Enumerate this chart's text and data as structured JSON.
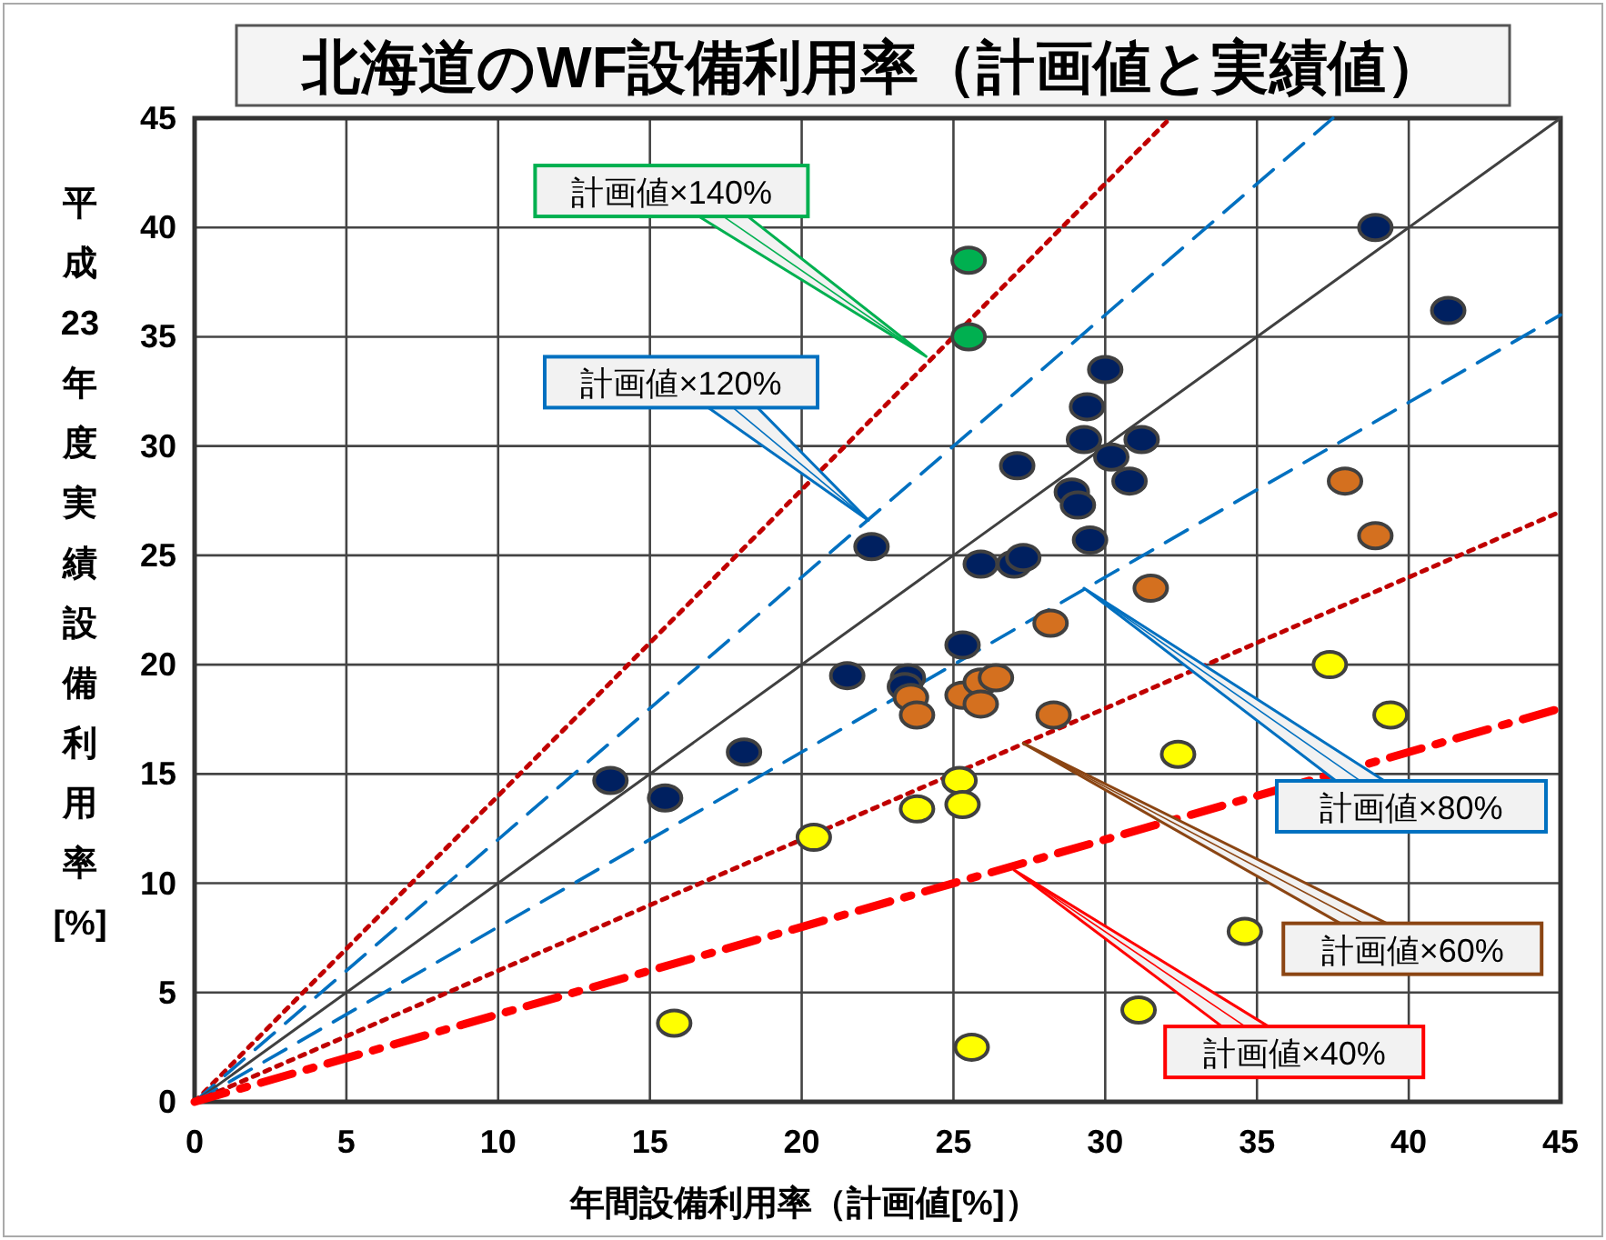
{
  "chart_data": {
    "type": "scatter",
    "title": "北海道のWF設備利用率（計画値と実績値）",
    "xlabel": "年間設備利用率（計画値[%]）",
    "ylabel": "平成23年度実績設備利用率[%]",
    "xlim": [
      0,
      45
    ],
    "ylim": [
      0,
      45
    ],
    "xticks": [
      0,
      5,
      10,
      15,
      20,
      25,
      30,
      35,
      40,
      45
    ],
    "yticks": [
      0,
      5,
      10,
      15,
      20,
      25,
      30,
      35,
      40,
      45
    ],
    "grid": true,
    "series": [
      {
        "type": "line",
        "color": "#c00000",
        "line_style": "dotted",
        "x": [
          0,
          32.14
        ],
        "values": [
          0,
          45
        ]
      },
      {
        "type": "line",
        "color": "#0070c0",
        "line_style": "dashed",
        "x": [
          0,
          37.5
        ],
        "values": [
          0,
          45
        ]
      },
      {
        "type": "line",
        "color": "#404040",
        "line_style": "solid",
        "x": [
          0,
          45
        ],
        "values": [
          0,
          45
        ]
      },
      {
        "type": "line",
        "color": "#0070c0",
        "line_style": "dashed",
        "x": [
          0,
          45
        ],
        "values": [
          0,
          36
        ]
      },
      {
        "type": "line",
        "color": "#c00000",
        "line_style": "dotted",
        "x": [
          0,
          45
        ],
        "values": [
          0,
          27
        ]
      },
      {
        "type": "line",
        "color": "#ff0000",
        "line_style": "dashdot",
        "x": [
          0,
          45
        ],
        "values": [
          0,
          18
        ]
      },
      {
        "type": "scatter",
        "marker": "circle",
        "color": "#002060",
        "x": [
          38.9,
          41.3,
          30.0,
          29.4,
          29.3,
          31.2,
          30.2,
          30.8,
          27.1,
          28.9,
          29.1,
          29.5,
          22.3,
          25.9,
          27.0,
          27.3,
          25.3,
          21.5,
          23.5,
          23.4,
          18.1,
          13.7,
          15.5
        ],
        "values": [
          40.0,
          36.2,
          33.5,
          31.8,
          30.3,
          30.3,
          29.5,
          28.4,
          29.1,
          27.9,
          27.3,
          25.7,
          25.4,
          24.6,
          24.6,
          24.9,
          20.9,
          19.5,
          19.4,
          19.0,
          16.0,
          14.7,
          13.9
        ]
      },
      {
        "type": "scatter",
        "marker": "circle",
        "color": "#00b050",
        "x": [
          25.5,
          25.5
        ],
        "values": [
          38.5,
          35.0
        ]
      },
      {
        "type": "scatter",
        "marker": "circle",
        "color": "#d4701f",
        "x": [
          37.9,
          38.9,
          31.5,
          28.2,
          25.3,
          25.9,
          26.4,
          23.6,
          23.8,
          25.9,
          28.3
        ],
        "values": [
          28.4,
          25.9,
          23.5,
          21.9,
          18.6,
          19.2,
          19.4,
          18.5,
          17.7,
          18.2,
          17.7
        ]
      },
      {
        "type": "scatter",
        "marker": "circle",
        "color": "#ffff00",
        "x": [
          37.4,
          39.4,
          32.4,
          25.2,
          23.8,
          25.3,
          34.6,
          31.1,
          25.6,
          20.4,
          15.8
        ],
        "values": [
          20.0,
          17.7,
          15.9,
          14.7,
          13.4,
          13.6,
          7.8,
          4.2,
          2.5,
          12.1,
          3.6
        ]
      }
    ],
    "annotations": [
      {
        "text": "計画値×140%",
        "x": 24.1,
        "y": 34.1
      },
      {
        "text": "計画値×120%",
        "x": 22.2,
        "y": 26.6
      },
      {
        "text": "計画値×80%",
        "x": 29.3,
        "y": 23.5
      },
      {
        "text": "計画値×60%",
        "x": 27.3,
        "y": 16.4
      },
      {
        "text": "計画値×40%",
        "x": 27.0,
        "y": 10.6
      }
    ]
  }
}
